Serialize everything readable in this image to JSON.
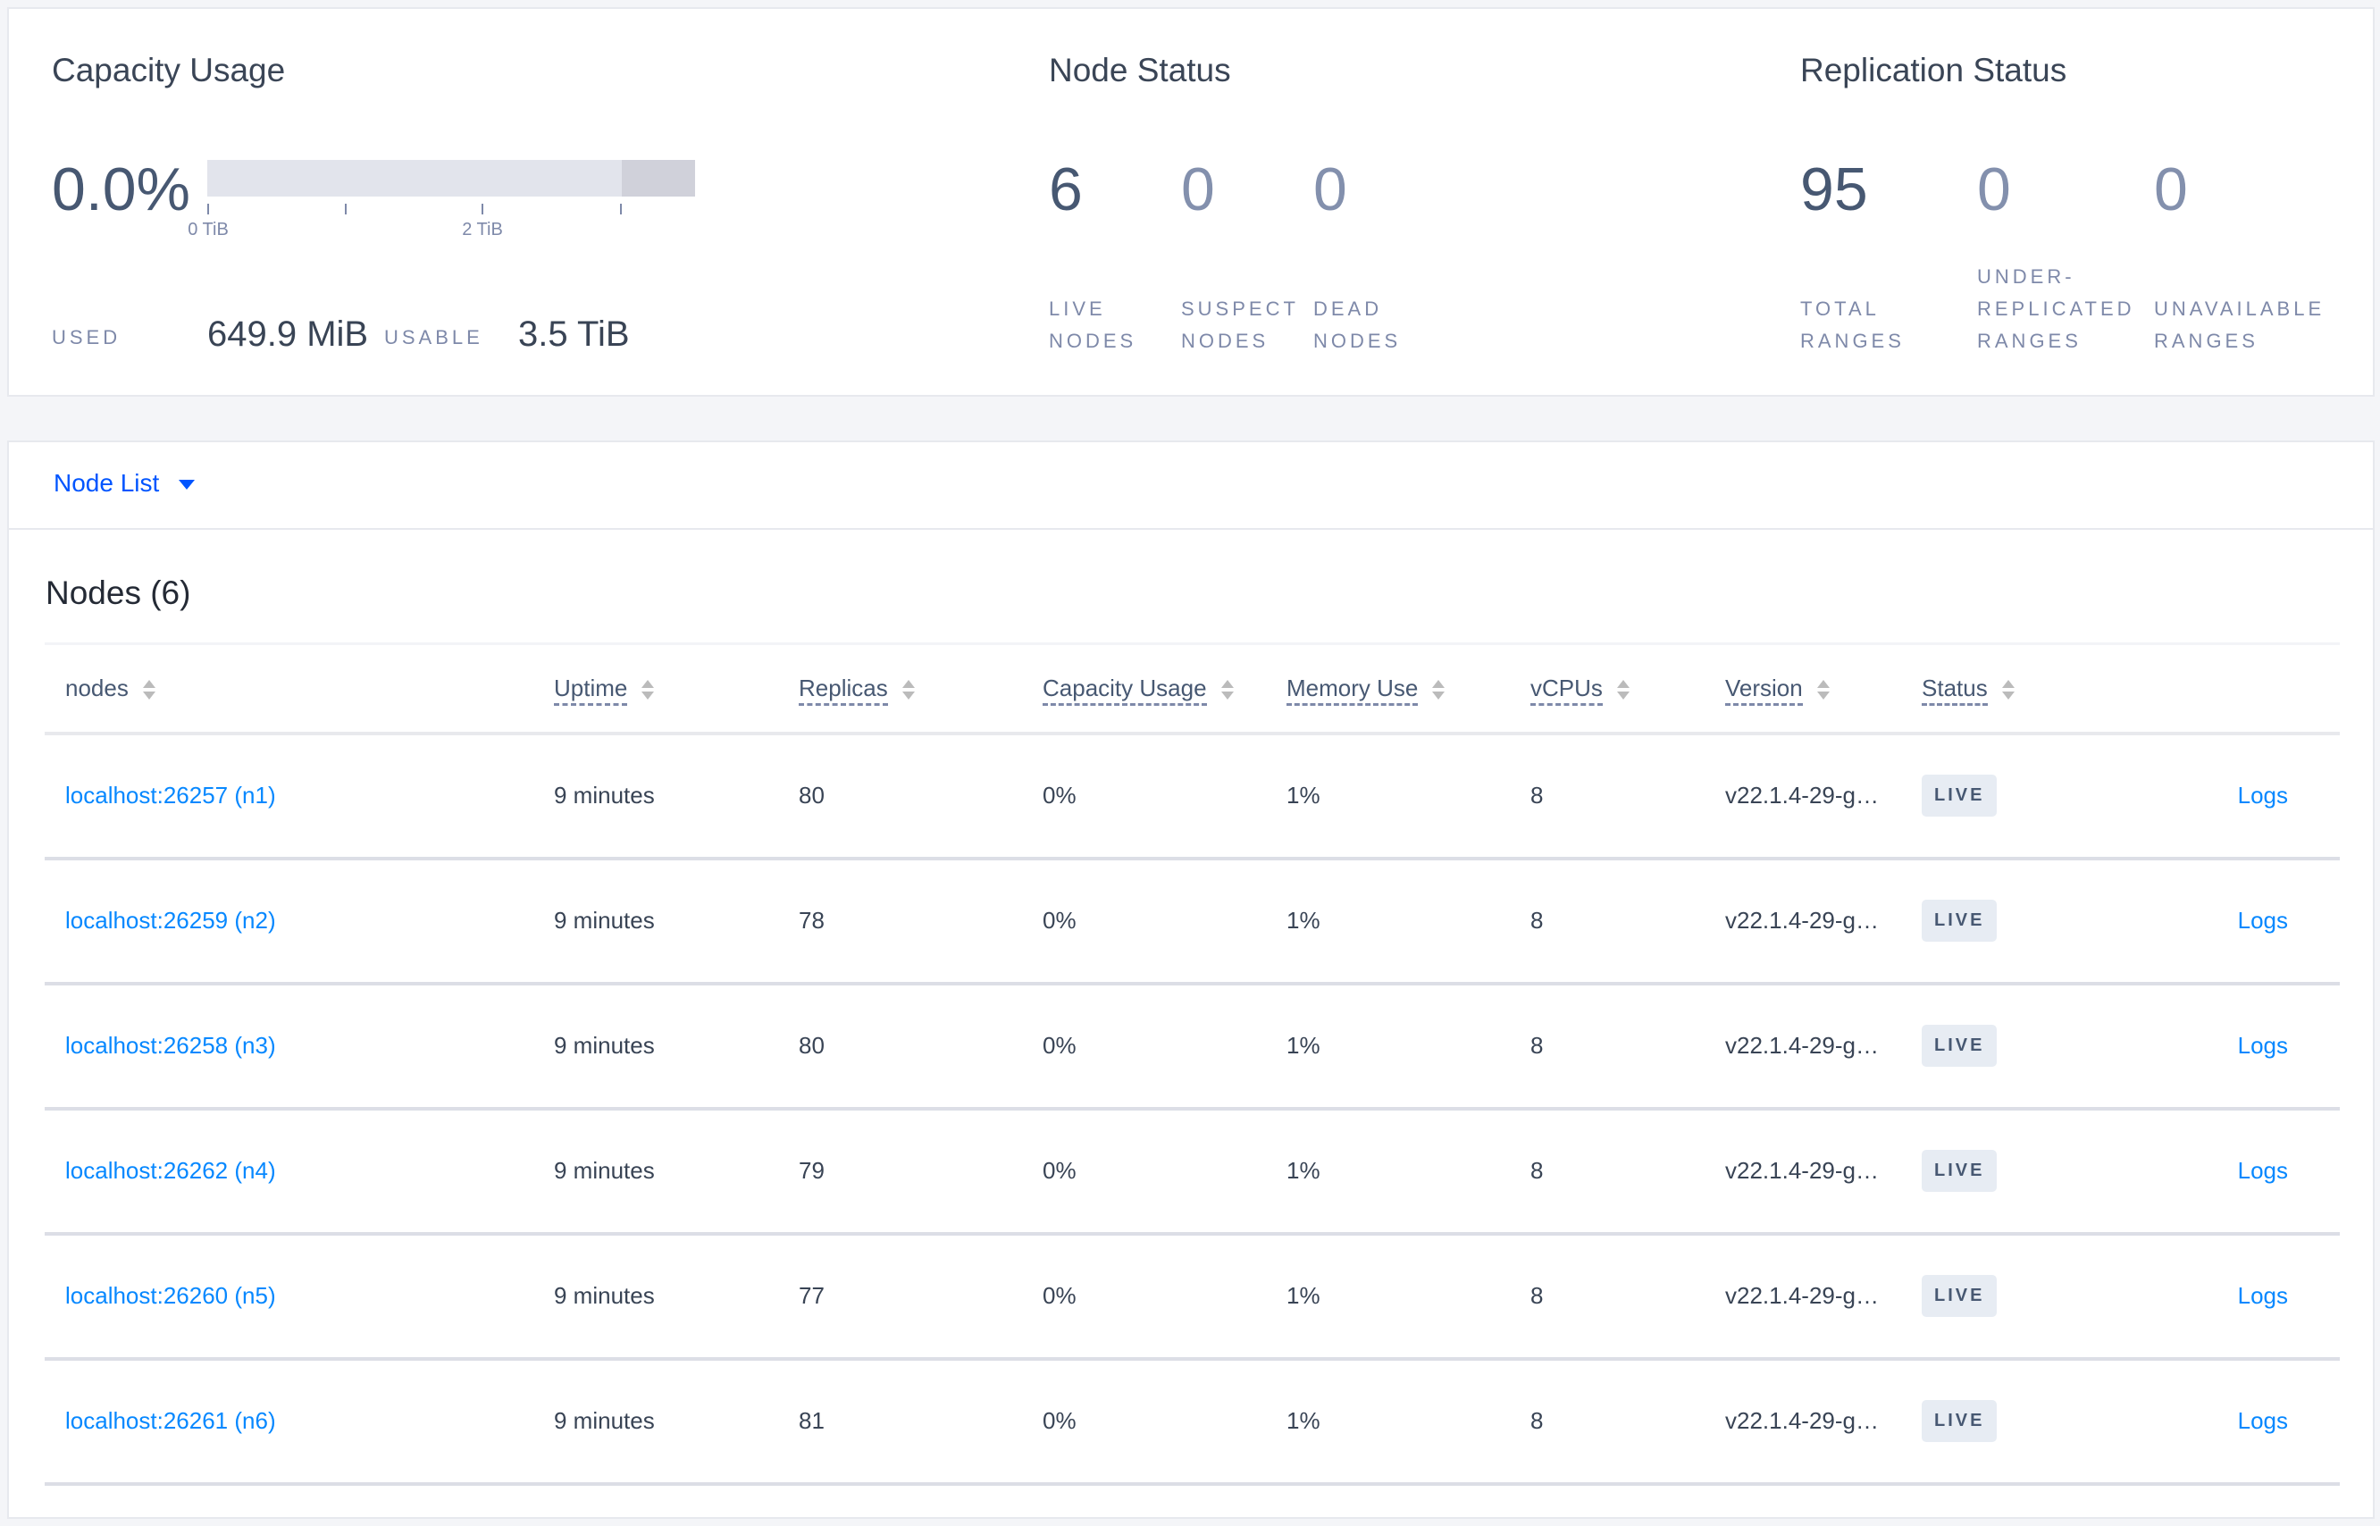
{
  "capacity": {
    "title": "Capacity Usage",
    "percent": "0.0%",
    "usage_fraction": 0.0,
    "usable_fraction_of_axis": 0.85,
    "ticks": [
      "0 TiB",
      "2 TiB"
    ],
    "used_label": "USED",
    "used_value": "649.9 MiB",
    "usable_label": "USABLE",
    "usable_value": "3.5 TiB"
  },
  "node_status": {
    "title": "Node Status",
    "stats": [
      {
        "value": "6",
        "label_1": "LIVE",
        "label_2": "NODES"
      },
      {
        "value": "0",
        "label_1": "SUSPECT",
        "label_2": "NODES"
      },
      {
        "value": "0",
        "label_1": "DEAD",
        "label_2": "NODES"
      }
    ]
  },
  "replication_status": {
    "title": "Replication Status",
    "stats": [
      {
        "value": "95",
        "label_1": "TOTAL",
        "label_2": "RANGES"
      },
      {
        "value": "0",
        "label_0": "UNDER-",
        "label_1": "REPLICATED",
        "label_2": "RANGES"
      },
      {
        "value": "0",
        "label_1": "UNAVAILABLE",
        "label_2": "RANGES"
      }
    ]
  },
  "view_selector": {
    "label": "Node List"
  },
  "nodes_table": {
    "title": "Nodes (6)",
    "columns": [
      "nodes",
      "Uptime",
      "Replicas",
      "Capacity Usage",
      "Memory Use",
      "vCPUs",
      "Version",
      "Status"
    ],
    "rows": [
      {
        "node": "localhost:26257 (n1)",
        "uptime": "9 minutes",
        "replicas": "80",
        "capacity": "0%",
        "memory": "1%",
        "vcpus": "8",
        "version": "v22.1.4-29-g…",
        "status": "LIVE",
        "logs": "Logs"
      },
      {
        "node": "localhost:26259 (n2)",
        "uptime": "9 minutes",
        "replicas": "78",
        "capacity": "0%",
        "memory": "1%",
        "vcpus": "8",
        "version": "v22.1.4-29-g…",
        "status": "LIVE",
        "logs": "Logs"
      },
      {
        "node": "localhost:26258 (n3)",
        "uptime": "9 minutes",
        "replicas": "80",
        "capacity": "0%",
        "memory": "1%",
        "vcpus": "8",
        "version": "v22.1.4-29-g…",
        "status": "LIVE",
        "logs": "Logs"
      },
      {
        "node": "localhost:26262 (n4)",
        "uptime": "9 minutes",
        "replicas": "79",
        "capacity": "0%",
        "memory": "1%",
        "vcpus": "8",
        "version": "v22.1.4-29-g…",
        "status": "LIVE",
        "logs": "Logs"
      },
      {
        "node": "localhost:26260 (n5)",
        "uptime": "9 minutes",
        "replicas": "77",
        "capacity": "0%",
        "memory": "1%",
        "vcpus": "8",
        "version": "v22.1.4-29-g…",
        "status": "LIVE",
        "logs": "Logs"
      },
      {
        "node": "localhost:26261 (n6)",
        "uptime": "9 minutes",
        "replicas": "81",
        "capacity": "0%",
        "memory": "1%",
        "vcpus": "8",
        "version": "v22.1.4-29-g…",
        "status": "LIVE",
        "logs": "Logs"
      }
    ]
  }
}
